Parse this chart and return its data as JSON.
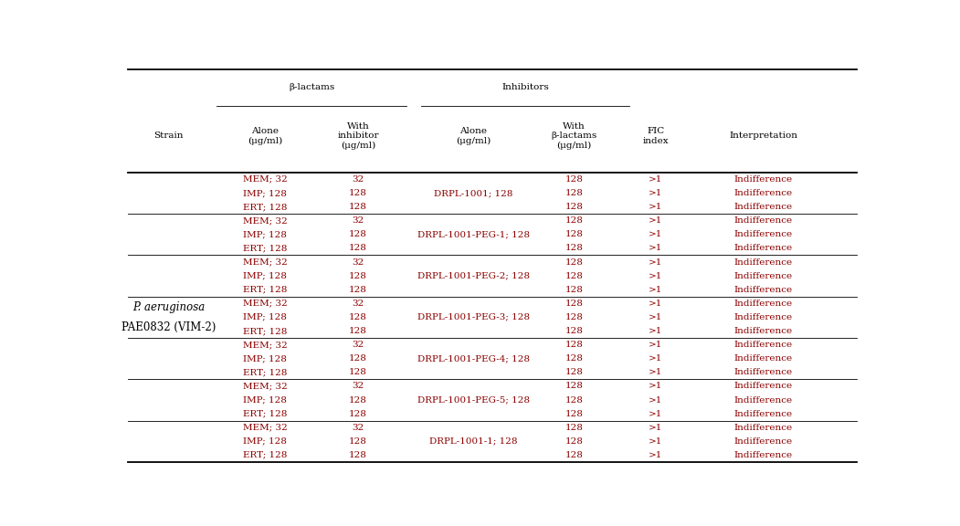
{
  "title_row1_left": "β-lactams",
  "title_row1_right": "Inhibitors",
  "col_headers": [
    "Strain",
    "Alone\n(μg/ml)",
    "With\ninhibitor\n(μg/ml)",
    "Alone\n(μg/ml)",
    "With\nβ-lactams\n(μg/ml)",
    "FIC\nindex",
    "Interpretation"
  ],
  "strain_label_line1": "P. aeruginosa",
  "strain_label_line2": "PAE0832 (VIM-2)",
  "groups": [
    {
      "rows": [
        [
          "MEM; 32",
          "32",
          "",
          "128",
          ">1",
          "Indifference"
        ],
        [
          "IMP; 128",
          "128",
          "DRPL-1001; 128",
          "128",
          ">1",
          "Indifference"
        ],
        [
          "ERT; 128",
          "128",
          "",
          "128",
          ">1",
          "Indifference"
        ]
      ]
    },
    {
      "rows": [
        [
          "MEM; 32",
          "32",
          "",
          "128",
          ">1",
          "Indifference"
        ],
        [
          "IMP; 128",
          "128",
          "DRPL-1001-PEG-1; 128",
          "128",
          ">1",
          "Indifference"
        ],
        [
          "ERT; 128",
          "128",
          "",
          "128",
          ">1",
          "Indifference"
        ]
      ]
    },
    {
      "rows": [
        [
          "MEM; 32",
          "32",
          "",
          "128",
          ">1",
          "Indifference"
        ],
        [
          "IMP; 128",
          "128",
          "DRPL-1001-PEG-2; 128",
          "128",
          ">1",
          "Indifference"
        ],
        [
          "ERT; 128",
          "128",
          "",
          "128",
          ">1",
          "Indifference"
        ]
      ]
    },
    {
      "rows": [
        [
          "MEM; 32",
          "32",
          "",
          "128",
          ">1",
          "Indifference"
        ],
        [
          "IMP; 128",
          "128",
          "DRPL-1001-PEG-3; 128",
          "128",
          ">1",
          "Indifference"
        ],
        [
          "ERT; 128",
          "128",
          "",
          "128",
          ">1",
          "Indifference"
        ]
      ]
    },
    {
      "rows": [
        [
          "MEM; 32",
          "32",
          "",
          "128",
          ">1",
          "Indifference"
        ],
        [
          "IMP; 128",
          "128",
          "DRPL-1001-PEG-4; 128",
          "128",
          ">1",
          "Indifference"
        ],
        [
          "ERT; 128",
          "128",
          "",
          "128",
          ">1",
          "Indifference"
        ]
      ]
    },
    {
      "rows": [
        [
          "MEM; 32",
          "32",
          "",
          "128",
          ">1",
          "Indifference"
        ],
        [
          "IMP; 128",
          "128",
          "DRPL-1001-PEG-5; 128",
          "128",
          ">1",
          "Indifference"
        ],
        [
          "ERT; 128",
          "128",
          "",
          "128",
          ">1",
          "Indifference"
        ]
      ]
    },
    {
      "rows": [
        [
          "MEM; 32",
          "32",
          "",
          "128",
          ">1",
          "Indifference"
        ],
        [
          "IMP; 128",
          "128",
          "DRPL-1001-1; 128",
          "128",
          ">1",
          "Indifference"
        ],
        [
          "ERT; 128",
          "128",
          "",
          "128",
          ">1",
          "Indifference"
        ]
      ]
    }
  ],
  "text_color_data": "#8B0000",
  "text_color_header": "#000000",
  "font_size_data": 7.5,
  "font_size_header": 7.5,
  "font_size_strain": 8.5,
  "bg_color": "#ffffff",
  "line_color": "#000000",
  "thick_lw": 1.3,
  "thin_lw": 0.6
}
